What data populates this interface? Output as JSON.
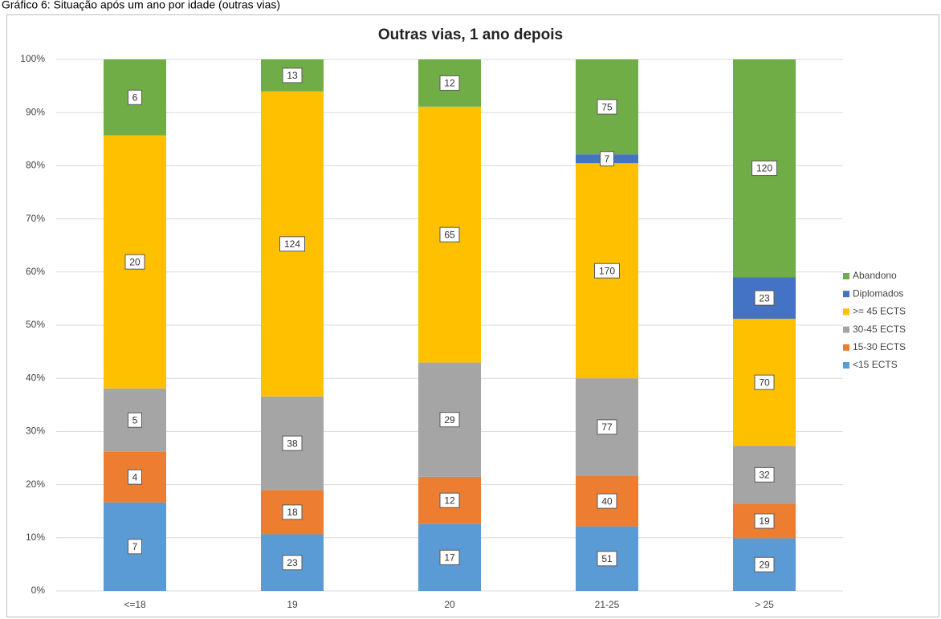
{
  "caption": "Gráfico 6: Situação após um ano por idade (outras vias)",
  "chart_data": {
    "type": "bar",
    "stacking": "percent",
    "title": "Outras vias, 1 ano depois",
    "categories": [
      "<=18",
      "19",
      "20",
      "21-25",
      "> 25"
    ],
    "series": [
      {
        "name": "<15 ECTS",
        "color": "#5b9bd5",
        "values": [
          7,
          23,
          17,
          51,
          29
        ]
      },
      {
        "name": "15-30 ECTS",
        "color": "#ed7d31",
        "values": [
          4,
          18,
          12,
          40,
          19
        ]
      },
      {
        "name": "30-45 ECTS",
        "color": "#a5a5a5",
        "values": [
          5,
          38,
          29,
          77,
          32
        ]
      },
      {
        "name": ">= 45 ECTS",
        "color": "#ffc000",
        "values": [
          20,
          124,
          65,
          170,
          70
        ]
      },
      {
        "name": "Diplomados",
        "color": "#4472c4",
        "values": [
          null,
          null,
          null,
          7,
          23
        ]
      },
      {
        "name": "Abandono",
        "color": "#70ad47",
        "values": [
          6,
          13,
          12,
          75,
          120
        ]
      }
    ],
    "ylim": [
      0,
      100
    ],
    "yticks": [
      {
        "value": 0,
        "label": "0%"
      },
      {
        "value": 10,
        "label": "10%"
      },
      {
        "value": 20,
        "label": "20%"
      },
      {
        "value": 30,
        "label": "30%"
      },
      {
        "value": 40,
        "label": "40%"
      },
      {
        "value": 50,
        "label": "50%"
      },
      {
        "value": 60,
        "label": "60%"
      },
      {
        "value": 70,
        "label": "70%"
      },
      {
        "value": 80,
        "label": "80%"
      },
      {
        "value": 90,
        "label": "90%"
      },
      {
        "value": 100,
        "label": "100%"
      }
    ],
    "grid": true,
    "legend": "right"
  }
}
